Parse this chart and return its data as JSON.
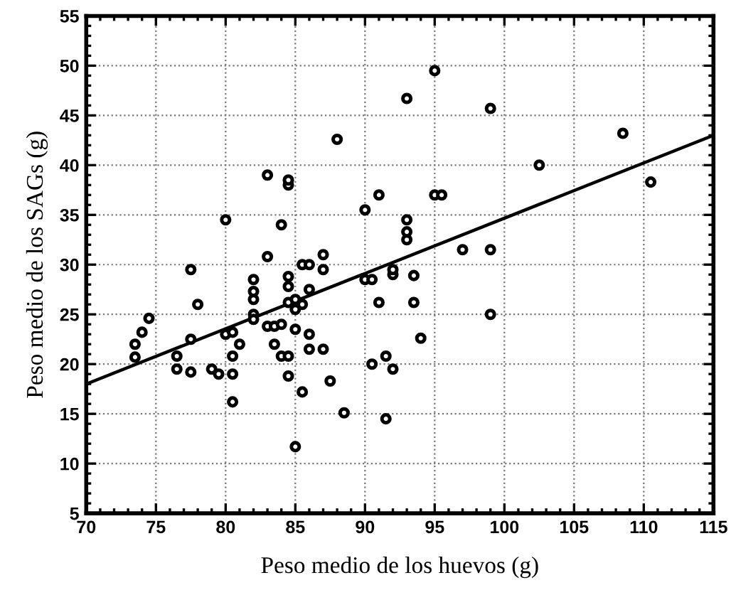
{
  "chart_data": {
    "type": "scatter",
    "xlabel": "Peso medio de los huevos (g)",
    "ylabel": "Peso medio de los SAGs (g)",
    "xlim": [
      70,
      115
    ],
    "ylim": [
      5,
      55
    ],
    "xticks": [
      70,
      75,
      80,
      85,
      90,
      95,
      100,
      105,
      110,
      115
    ],
    "yticks": [
      5,
      10,
      15,
      20,
      25,
      30,
      35,
      40,
      45,
      50,
      55
    ],
    "grid": true,
    "marker": "circle",
    "series": [
      {
        "color": "#000000",
        "x": [
          73.5,
          73.5,
          74,
          74.5,
          76.5,
          76.5,
          77.5,
          77.5,
          77.5,
          78,
          79,
          79.5,
          80,
          80,
          80.5,
          80.5,
          80.5,
          80.5,
          81,
          82,
          82,
          82,
          82,
          82,
          83,
          83,
          83,
          83.5,
          83.5,
          84,
          84,
          84,
          84.5,
          84.5,
          84.5,
          84.5,
          84.5,
          84.5,
          84.5,
          85,
          85,
          85,
          85,
          85.5,
          85.5,
          85.5,
          86,
          86,
          86,
          86,
          87,
          87,
          87,
          87.5,
          88,
          88.5,
          90,
          90,
          90.5,
          90.5,
          91,
          91,
          91.5,
          91.5,
          92,
          92,
          92,
          93,
          93,
          93,
          93,
          93.5,
          93.5,
          94,
          95,
          95,
          95.5,
          97,
          99,
          99,
          99,
          102.5,
          108.5,
          110.5
        ],
        "values": [
          20.7,
          22,
          23.2,
          24.6,
          20.8,
          19.5,
          22.5,
          29.5,
          19.2,
          26,
          19.5,
          19,
          23,
          34.5,
          23.2,
          20.8,
          19,
          16.2,
          22,
          25,
          26.5,
          27.3,
          28.5,
          24.5,
          30.8,
          23.8,
          39,
          23.8,
          22,
          34,
          24,
          20.8,
          38,
          38.5,
          28.8,
          27.8,
          26.2,
          20.8,
          18.8,
          11.7,
          25.5,
          23.5,
          26.5,
          26,
          17.2,
          30,
          27.5,
          23,
          21.5,
          30,
          31,
          29.5,
          21.5,
          18.3,
          42.6,
          15.1,
          28.5,
          35.5,
          28.5,
          20,
          37,
          26.2,
          20.8,
          14.5,
          29,
          19.5,
          29.5,
          46.7,
          34.5,
          32.5,
          33.3,
          26.2,
          28.9,
          22.6,
          49.5,
          37,
          37,
          31.5,
          45.7,
          25,
          31.5,
          40,
          43.2,
          38.3
        ]
      },
      {
        "type": "line",
        "color": "#000000",
        "x": [
          70,
          115
        ],
        "values": [
          18,
          43
        ],
        "marker": "none",
        "line_style": "solid"
      }
    ]
  }
}
